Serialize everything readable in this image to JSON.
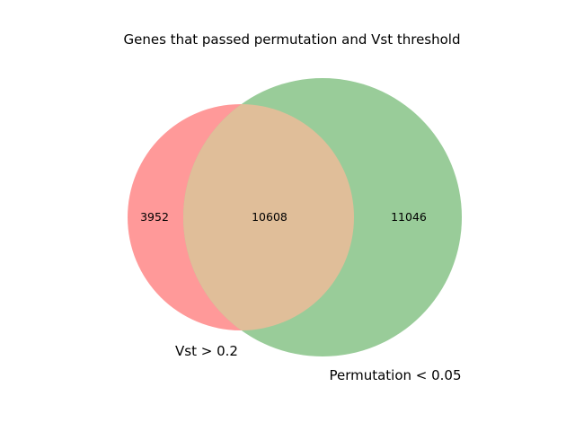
{
  "title": "Genes that passed permutation and Vst threshold",
  "colors": {
    "set_a": "#ff9999",
    "set_b": "#99cc99",
    "overlap": "#e0be99",
    "text": "#000000",
    "background": "#ffffff"
  },
  "sets": [
    {
      "key": "a",
      "label": "Vst > 0.2",
      "count": "3952"
    },
    {
      "key": "b",
      "label": "Permutation < 0.05",
      "count": "11046"
    }
  ],
  "overlap": {
    "count": "10608"
  }
}
